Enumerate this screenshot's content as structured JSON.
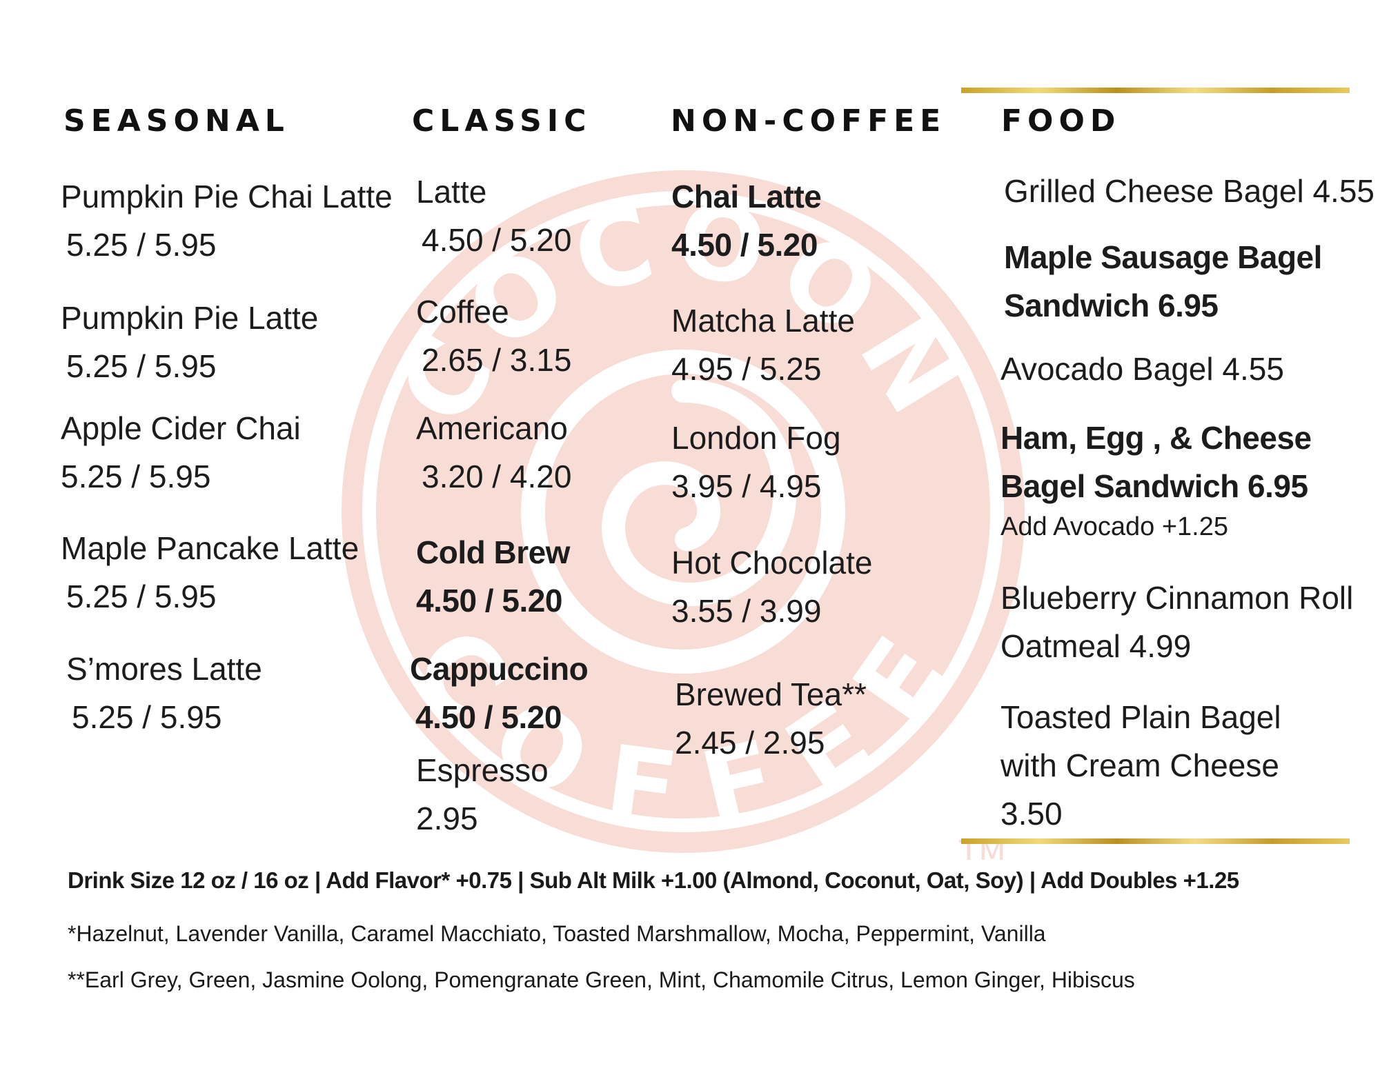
{
  "sections": {
    "seasonal": {
      "title": "SEASONAL",
      "items": [
        {
          "name": "Pumpkin Pie Chai Latte",
          "price": "5.25 / 5.95"
        },
        {
          "name": "Pumpkin Pie Latte",
          "price": "5.25 / 5.95"
        },
        {
          "name": "Apple Cider Chai",
          "price": "5.25 / 5.95"
        },
        {
          "name": "Maple Pancake Latte",
          "price": "5.25 / 5.95"
        },
        {
          "name": "S’mores Latte",
          "price": "5.25 / 5.95"
        }
      ]
    },
    "classic": {
      "title": "CLASSIC",
      "items": [
        {
          "name": "Latte",
          "price": "4.50 / 5.20"
        },
        {
          "name": "Coffee",
          "price": "2.65 / 3.15"
        },
        {
          "name": "Americano",
          "price": "3.20 / 4.20"
        },
        {
          "name": "Cold Brew",
          "price": "4.50 / 5.20"
        },
        {
          "name": "Cappuccino",
          "price": "4.50 / 5.20"
        },
        {
          "name": "Espresso",
          "price": "2.95"
        }
      ]
    },
    "noncoffee": {
      "title": "NON-COFFEE",
      "items": [
        {
          "name": "Chai Latte",
          "price": "4.50 / 5.20"
        },
        {
          "name": "Matcha Latte",
          "price": "4.95 / 5.25"
        },
        {
          "name": "London Fog",
          "price": "3.95 / 4.95"
        },
        {
          "name": "Hot Chocolate",
          "price": "3.55 / 3.99"
        },
        {
          "name": "Brewed Tea**",
          "price": "2.45 / 2.95"
        }
      ]
    },
    "food": {
      "title": "FOOD",
      "items": [
        {
          "line1": "Grilled Cheese Bagel 4.55"
        },
        {
          "line1": "Maple Sausage Bagel",
          "line2": "Sandwich 6.95"
        },
        {
          "line1": "Avocado Bagel 4.55"
        },
        {
          "line1": "Ham, Egg , & Cheese",
          "line2": "Bagel Sandwich 6.95",
          "addon": "Add Avocado +1.25"
        },
        {
          "line1": "Blueberry Cinnamon Roll",
          "line2": "Oatmeal 4.99"
        },
        {
          "line1": "Toasted Plain Bagel",
          "line2": "with Cream Cheese",
          "line3": "3.50"
        }
      ]
    }
  },
  "footer": {
    "sizes": "Drink Size 12 oz / 16 oz | Add Flavor* +0.75 | Sub Alt Milk +1.00 (Almond, Coconut,  Oat, Soy) | Add Doubles +1.25",
    "flavors": "*Hazelnut, Lavender Vanilla, Caramel Macchiato, Toasted Marshmallow, Mocha, Peppermint, Vanilla",
    "teas": "**Earl Grey, Green, Jasmine Oolong, Pomengranate Green, Mint, Chamomile Citrus, Lemon Ginger, Hibiscus"
  },
  "watermark": {
    "top": "COCOON",
    "bottom": "COFFEE",
    "mark": "TM"
  },
  "colors": {
    "watermark": "#f8dcd6",
    "gold": "#d4af37",
    "text": "#1a1a1a"
  }
}
